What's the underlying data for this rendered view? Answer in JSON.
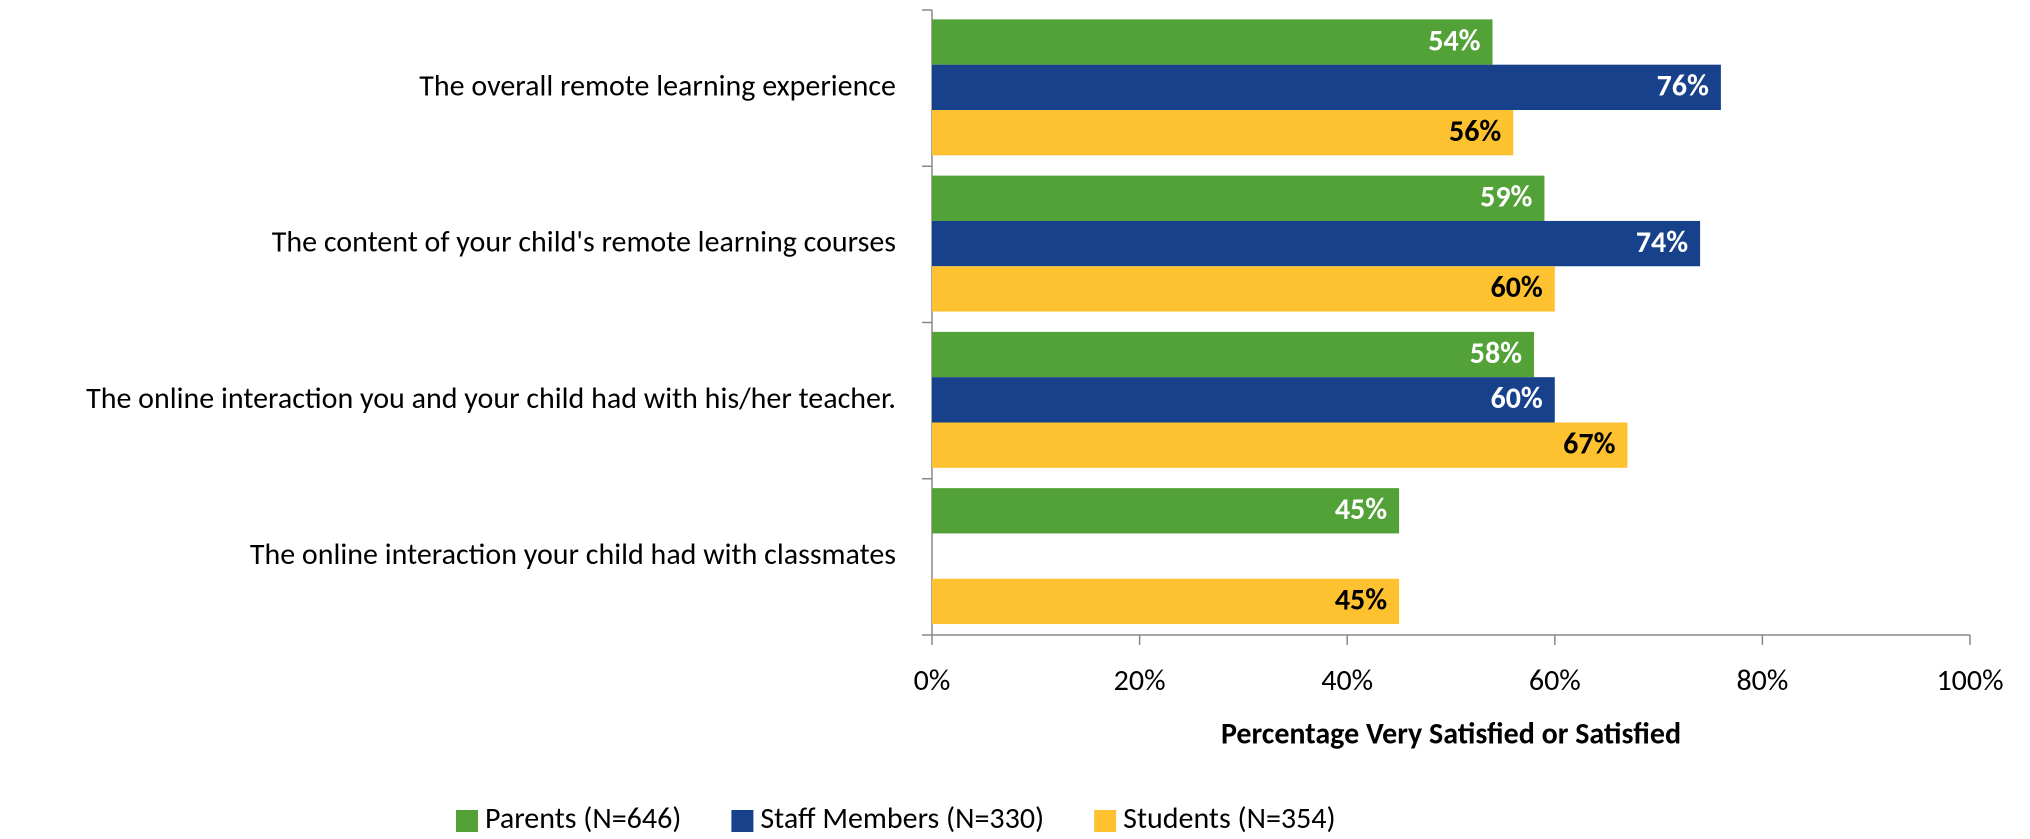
{
  "chart_data": {
    "type": "hbar",
    "categories": [
      "The overall remote learning experience",
      "The content of your child's remote learning courses",
      "The online interaction you and your child had with his/her teacher.",
      "The online interaction your child had with classmates"
    ],
    "series": [
      {
        "name": "Parents (N=646)",
        "color": "#52a238",
        "label_color": "#ffffff",
        "values": [
          54,
          59,
          58,
          45
        ],
        "value_labels": [
          "54%",
          "59%",
          "58%",
          "45%"
        ]
      },
      {
        "name": "Staff Members (N=330)",
        "color": "#17418b",
        "label_color": "#ffffff",
        "values": [
          76,
          74,
          60,
          null
        ],
        "value_labels": [
          "76%",
          "74%",
          "60%",
          null
        ]
      },
      {
        "name": "Students (N=354)",
        "color": "#fec231",
        "label_color": "#000000",
        "values": [
          56,
          60,
          67,
          45
        ],
        "value_labels": [
          "56%",
          "60%",
          "67%",
          "45%"
        ]
      }
    ],
    "xlabel": "Percentage Very Satisfied or Satisfied",
    "xlim": [
      0,
      100
    ],
    "xticks": [
      {
        "value": 0,
        "label": "0%"
      },
      {
        "value": 20,
        "label": "20%"
      },
      {
        "value": 40,
        "label": "40%"
      },
      {
        "value": 60,
        "label": "60%"
      },
      {
        "value": 80,
        "label": "80%"
      },
      {
        "value": 100,
        "label": "100%"
      }
    ],
    "legend": "bottom"
  }
}
